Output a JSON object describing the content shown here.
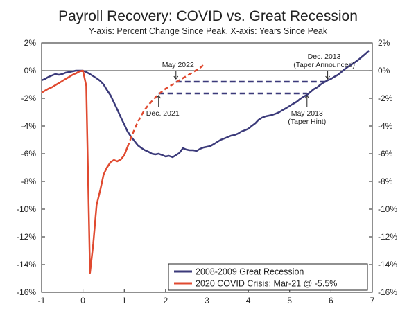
{
  "chart_data": {
    "type": "line",
    "title": "Payroll Recovery: COVID vs. Great Recession",
    "subtitle": "Y-axis: Percent Change Since Peak, X-axis: Years Since Peak",
    "xlim": [
      -1,
      7
    ],
    "ylim": [
      -16,
      2
    ],
    "x_ticks": [
      -1,
      0,
      1,
      2,
      3,
      4,
      5,
      6,
      7
    ],
    "x_tick_labels": [
      "-1",
      "0",
      "1",
      "2",
      "3",
      "4",
      "5",
      "6",
      "7"
    ],
    "y_ticks": [
      2,
      0,
      -2,
      -4,
      -6,
      -8,
      -10,
      -12,
      -14,
      -16
    ],
    "y_tick_labels": [
      "2%",
      "0%",
      "-2%",
      "-4%",
      "-6%",
      "-8%",
      "-10%",
      "-12%",
      "-14%",
      "-16%"
    ],
    "series": [
      {
        "name": "2008-2009 Great Recession",
        "color": "#3b3a7a",
        "points": [
          [
            -1,
            -0.7
          ],
          [
            -0.92,
            -0.6
          ],
          [
            -0.83,
            -0.45
          ],
          [
            -0.75,
            -0.35
          ],
          [
            -0.67,
            -0.25
          ],
          [
            -0.58,
            -0.3
          ],
          [
            -0.5,
            -0.25
          ],
          [
            -0.42,
            -0.15
          ],
          [
            -0.33,
            -0.1
          ],
          [
            -0.25,
            -0.05
          ],
          [
            -0.17,
            0
          ],
          [
            -0.08,
            0
          ],
          [
            0,
            0
          ],
          [
            0.08,
            -0.1
          ],
          [
            0.17,
            -0.25
          ],
          [
            0.25,
            -0.4
          ],
          [
            0.33,
            -0.55
          ],
          [
            0.42,
            -0.75
          ],
          [
            0.5,
            -1.0
          ],
          [
            0.58,
            -1.4
          ],
          [
            0.67,
            -1.8
          ],
          [
            0.75,
            -2.3
          ],
          [
            0.83,
            -2.8
          ],
          [
            0.92,
            -3.4
          ],
          [
            1.0,
            -3.9
          ],
          [
            1.08,
            -4.4
          ],
          [
            1.17,
            -4.8
          ],
          [
            1.25,
            -5.1
          ],
          [
            1.33,
            -5.4
          ],
          [
            1.42,
            -5.6
          ],
          [
            1.5,
            -5.75
          ],
          [
            1.58,
            -5.85
          ],
          [
            1.67,
            -6.0
          ],
          [
            1.75,
            -6.05
          ],
          [
            1.83,
            -6.0
          ],
          [
            1.92,
            -6.1
          ],
          [
            2.0,
            -6.2
          ],
          [
            2.08,
            -6.15
          ],
          [
            2.17,
            -6.25
          ],
          [
            2.25,
            -6.1
          ],
          [
            2.33,
            -5.95
          ],
          [
            2.42,
            -5.6
          ],
          [
            2.5,
            -5.7
          ],
          [
            2.58,
            -5.75
          ],
          [
            2.67,
            -5.75
          ],
          [
            2.75,
            -5.8
          ],
          [
            2.83,
            -5.65
          ],
          [
            2.92,
            -5.55
          ],
          [
            3.0,
            -5.5
          ],
          [
            3.08,
            -5.45
          ],
          [
            3.17,
            -5.3
          ],
          [
            3.25,
            -5.15
          ],
          [
            3.33,
            -5.0
          ],
          [
            3.42,
            -4.9
          ],
          [
            3.5,
            -4.8
          ],
          [
            3.58,
            -4.7
          ],
          [
            3.67,
            -4.65
          ],
          [
            3.75,
            -4.55
          ],
          [
            3.83,
            -4.4
          ],
          [
            3.92,
            -4.3
          ],
          [
            4.0,
            -4.2
          ],
          [
            4.08,
            -4.0
          ],
          [
            4.17,
            -3.8
          ],
          [
            4.25,
            -3.55
          ],
          [
            4.33,
            -3.4
          ],
          [
            4.42,
            -3.3
          ],
          [
            4.5,
            -3.25
          ],
          [
            4.58,
            -3.2
          ],
          [
            4.67,
            -3.1
          ],
          [
            4.75,
            -3.0
          ],
          [
            4.83,
            -2.85
          ],
          [
            4.92,
            -2.7
          ],
          [
            5.0,
            -2.55
          ],
          [
            5.08,
            -2.4
          ],
          [
            5.17,
            -2.25
          ],
          [
            5.25,
            -2.05
          ],
          [
            5.33,
            -1.9
          ],
          [
            5.42,
            -1.75
          ],
          [
            5.5,
            -1.55
          ],
          [
            5.58,
            -1.35
          ],
          [
            5.67,
            -1.2
          ],
          [
            5.75,
            -1.0
          ],
          [
            5.83,
            -0.85
          ],
          [
            5.92,
            -0.7
          ],
          [
            6.0,
            -0.6
          ],
          [
            6.08,
            -0.45
          ],
          [
            6.17,
            -0.3
          ],
          [
            6.25,
            -0.1
          ],
          [
            6.33,
            0.1
          ],
          [
            6.42,
            0.3
          ],
          [
            6.5,
            0.45
          ],
          [
            6.58,
            0.6
          ],
          [
            6.67,
            0.8
          ],
          [
            6.75,
            1.0
          ],
          [
            6.83,
            1.2
          ],
          [
            6.92,
            1.45
          ]
        ],
        "dashed_from_x": null
      },
      {
        "name": "2020 COVID Crisis: Mar-21 @ -5.5%",
        "color": "#e04a30",
        "points": [
          [
            -1,
            -1.6
          ],
          [
            -0.92,
            -1.45
          ],
          [
            -0.83,
            -1.3
          ],
          [
            -0.75,
            -1.2
          ],
          [
            -0.67,
            -1.05
          ],
          [
            -0.58,
            -0.9
          ],
          [
            -0.5,
            -0.75
          ],
          [
            -0.42,
            -0.6
          ],
          [
            -0.33,
            -0.45
          ],
          [
            -0.25,
            -0.3
          ],
          [
            -0.17,
            -0.2
          ],
          [
            -0.08,
            -0.05
          ],
          [
            0,
            0.0
          ],
          [
            0.08,
            -1.1
          ],
          [
            0.17,
            -14.6
          ],
          [
            0.25,
            -12.5
          ],
          [
            0.33,
            -9.7
          ],
          [
            0.42,
            -8.6
          ],
          [
            0.5,
            -7.5
          ],
          [
            0.58,
            -7.0
          ],
          [
            0.67,
            -6.6
          ],
          [
            0.75,
            -6.45
          ],
          [
            0.83,
            -6.55
          ],
          [
            0.92,
            -6.4
          ],
          [
            1.0,
            -6.1
          ],
          [
            1.08,
            -5.5
          ],
          [
            1.17,
            -4.8
          ],
          [
            1.25,
            -4.2
          ],
          [
            1.33,
            -3.7
          ],
          [
            1.42,
            -3.2
          ],
          [
            1.5,
            -2.8
          ],
          [
            1.58,
            -2.5
          ],
          [
            1.67,
            -2.2
          ],
          [
            1.75,
            -1.95
          ],
          [
            1.83,
            -1.7
          ],
          [
            1.92,
            -1.5
          ],
          [
            2.0,
            -1.3
          ],
          [
            2.17,
            -1.0
          ],
          [
            2.33,
            -0.7
          ],
          [
            2.5,
            -0.4
          ],
          [
            2.67,
            -0.1
          ],
          [
            2.83,
            0.2
          ],
          [
            2.92,
            0.4
          ]
        ],
        "dashed_from_x": 1.08
      }
    ],
    "reference_lines": [
      {
        "y": -0.8,
        "x_start": 2.25,
        "x_end": 5.92,
        "style": "dashed"
      },
      {
        "y": -1.65,
        "x_start": 1.83,
        "x_end": 5.42,
        "style": "dashed"
      }
    ],
    "annotations": [
      {
        "text": "May 2022",
        "x": 2.25,
        "y": -0.8,
        "arrow": "down"
      },
      {
        "text": "Dec. 2021",
        "x": 1.83,
        "y": -1.65,
        "arrow": "up"
      },
      {
        "text": "Dec. 2013",
        "text2": "(Taper Announced)",
        "x": 5.92,
        "y": -0.8,
        "arrow": "down"
      },
      {
        "text": "May 2013",
        "text2": "(Taper Hint)",
        "x": 5.42,
        "y": -1.65,
        "arrow": "up"
      }
    ],
    "legend": {
      "placement": "bottom-right",
      "items": [
        "2008-2009 Great Recession",
        "2020 COVID Crisis: Mar-21 @ -5.5%"
      ]
    },
    "grid": false,
    "zero_line": true
  }
}
